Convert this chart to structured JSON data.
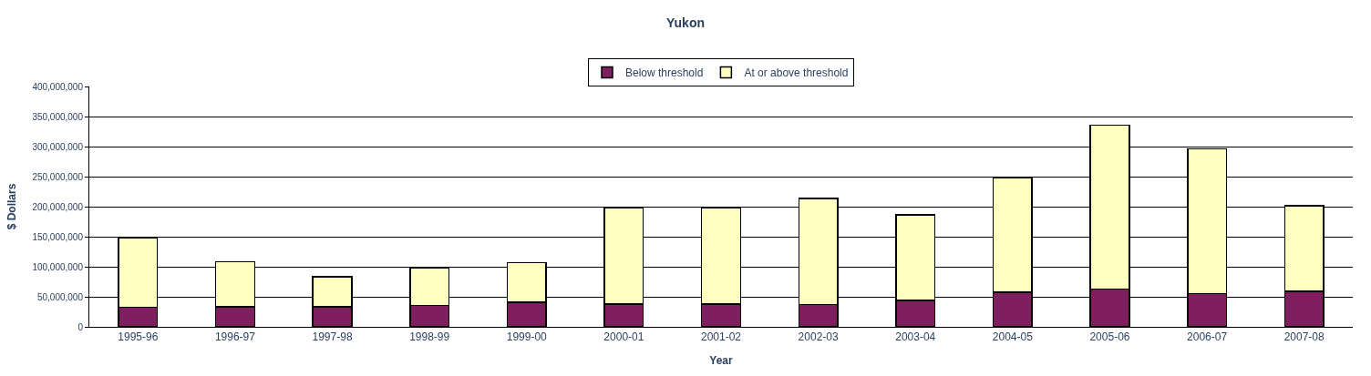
{
  "chart_data": {
    "type": "bar",
    "title": "Yukon",
    "xlabel": "Year",
    "ylabel": "$ Dollars",
    "stacked": true,
    "legend": "top",
    "grid": "y",
    "categories": [
      "1995-96",
      "1996-97",
      "1997-98",
      "1998-99",
      "1999-00",
      "2000-01",
      "2001-02",
      "2002-03",
      "2003-04",
      "2004-05",
      "2005-06",
      "2006-07",
      "2007-08"
    ],
    "series": [
      {
        "name": "Below threshold",
        "color": "#801f5f",
        "values": [
          32500000,
          33000000,
          33000000,
          35500000,
          41000000,
          38000000,
          38000000,
          37000000,
          44000000,
          57500000,
          63000000,
          55000000,
          59000000
        ]
      },
      {
        "name": "At or above threshold",
        "color": "#ffffc0",
        "values": [
          115000000,
          75500000,
          50000000,
          63000000,
          66000000,
          160500000,
          160000000,
          177000000,
          142000000,
          190500000,
          272500000,
          241000000,
          142500000
        ]
      }
    ],
    "ylim": [
      0,
      400000000
    ],
    "yticks": [
      {
        "value": 0,
        "label": "0"
      },
      {
        "value": 50000000,
        "label": "50,000,000"
      },
      {
        "value": 100000000,
        "label": "100,000,000"
      },
      {
        "value": 150000000,
        "label": "150,000,000"
      },
      {
        "value": 200000000,
        "label": "200,000,000"
      },
      {
        "value": 250000000,
        "label": "250,000,000"
      },
      {
        "value": 300000000,
        "label": "300,000,000"
      },
      {
        "value": 350000000,
        "label": "350,000,000"
      },
      {
        "value": 400000000,
        "label": "400,000,000"
      }
    ]
  }
}
